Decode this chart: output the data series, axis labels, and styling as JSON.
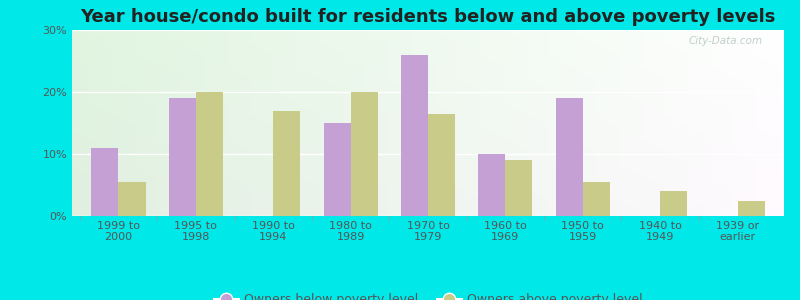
{
  "title": "Year house/condo built for residents below and above poverty levels",
  "categories": [
    "1999 to\n2000",
    "1995 to\n1998",
    "1990 to\n1994",
    "1980 to\n1989",
    "1970 to\n1979",
    "1960 to\n1969",
    "1950 to\n1959",
    "1940 to\n1949",
    "1939 or\nearlier"
  ],
  "below_poverty": [
    11,
    19,
    0,
    15,
    26,
    10,
    19,
    0,
    0
  ],
  "above_poverty": [
    5.5,
    20,
    17,
    20,
    16.5,
    9,
    5.5,
    4,
    2.5
  ],
  "below_color": "#c4a0d4",
  "above_color": "#c8cc88",
  "ylim": [
    0,
    30
  ],
  "yticks": [
    0,
    10,
    20,
    30
  ],
  "ytick_labels": [
    "0%",
    "10%",
    "20%",
    "30%"
  ],
  "outer_bg": "#00e8e8",
  "title_fontsize": 13,
  "tick_fontsize": 8,
  "legend_fontsize": 9,
  "bar_width": 0.35,
  "legend_below_label": "Owners below poverty level",
  "legend_above_label": "Owners above poverty level"
}
